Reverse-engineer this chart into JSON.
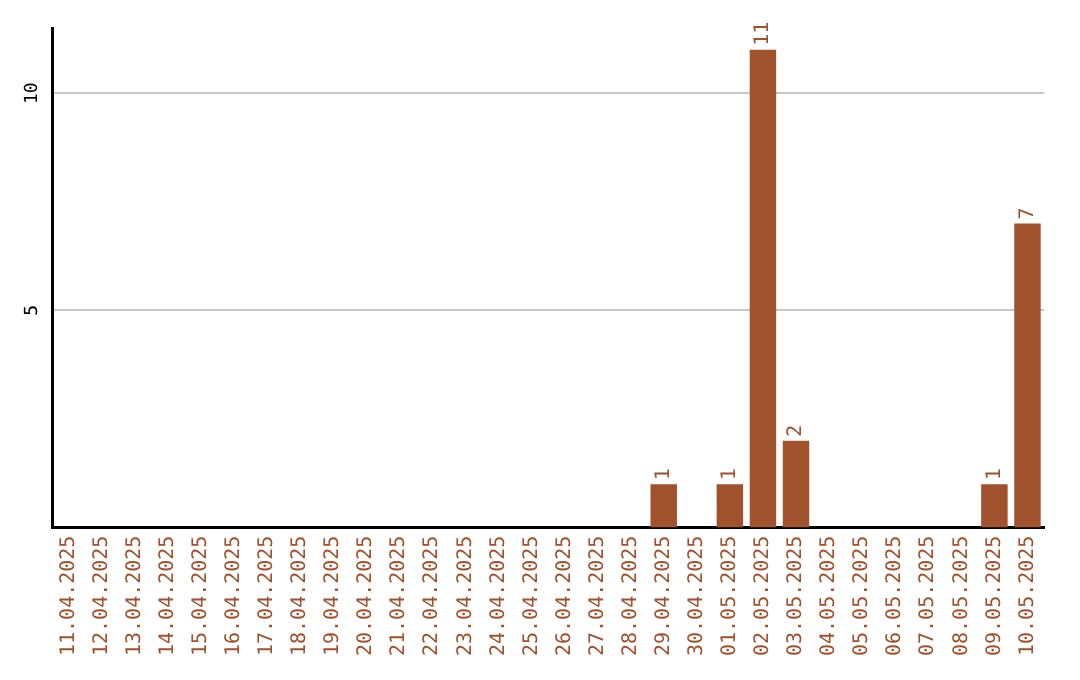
{
  "chart_data": {
    "type": "bar",
    "categories": [
      "11.04.2025",
      "12.04.2025",
      "13.04.2025",
      "14.04.2025",
      "15.04.2025",
      "16.04.2025",
      "17.04.2025",
      "18.04.2025",
      "19.04.2025",
      "20.04.2025",
      "21.04.2025",
      "22.04.2025",
      "23.04.2025",
      "24.04.2025",
      "25.04.2025",
      "26.04.2025",
      "27.04.2025",
      "28.04.2025",
      "29.04.2025",
      "30.04.2025",
      "01.05.2025",
      "02.05.2025",
      "03.05.2025",
      "04.05.2025",
      "05.05.2025",
      "06.05.2025",
      "07.05.2025",
      "08.05.2025",
      "09.05.2025",
      "10.05.2025"
    ],
    "values": [
      0,
      0,
      0,
      0,
      0,
      0,
      0,
      0,
      0,
      0,
      0,
      0,
      0,
      0,
      0,
      0,
      0,
      0,
      1,
      0,
      1,
      11,
      2,
      0,
      0,
      0,
      0,
      0,
      1,
      7
    ],
    "value_labels": [
      null,
      null,
      null,
      null,
      null,
      null,
      null,
      null,
      null,
      null,
      null,
      null,
      null,
      null,
      null,
      null,
      null,
      null,
      "1",
      null,
      "1",
      "11",
      "2",
      null,
      null,
      null,
      null,
      null,
      "1",
      "7"
    ],
    "color": "#a0522d",
    "ylim": [
      0,
      11.5
    ],
    "yticks": [
      5,
      10
    ],
    "grid": "y",
    "legend": false
  }
}
